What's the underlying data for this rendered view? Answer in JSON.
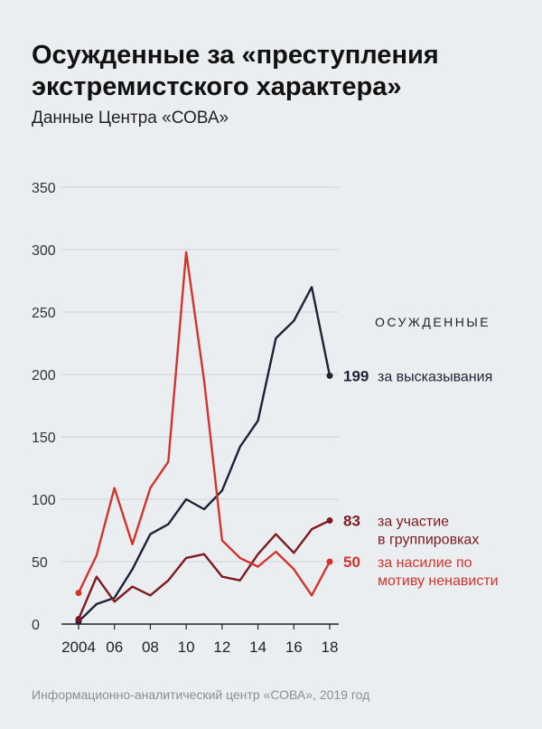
{
  "header": {
    "title": "Осужденные за «преступления экстремистского характера»",
    "subtitle": "Данные Центра «СОВА»"
  },
  "footer": {
    "source": "Информационно-аналитический центр «СОВА», 2019 год"
  },
  "colors": {
    "speech": "#1f2235",
    "groups": "#7d1a1f",
    "violence": "#d0342c"
  },
  "chart_data": {
    "type": "line",
    "title": "Осужденные за «преступления экстремистского характера»",
    "subtitle": "Данные Центра «СОВА»",
    "xlabel": "",
    "ylabel": "",
    "x": [
      2004,
      2005,
      2006,
      2007,
      2008,
      2009,
      2010,
      2011,
      2012,
      2013,
      2014,
      2015,
      2016,
      2017,
      2018
    ],
    "x_tick_values": [
      2004,
      2006,
      2008,
      2010,
      2012,
      2014,
      2016,
      2018
    ],
    "x_tick_labels": [
      "2004",
      "06",
      "08",
      "10",
      "12",
      "14",
      "16",
      "18"
    ],
    "y_ticks": [
      0,
      50,
      100,
      150,
      200,
      250,
      300,
      350
    ],
    "ylim": [
      0,
      350
    ],
    "grid": true,
    "legend_header": "ОСУЖДЕННЫЕ",
    "series": [
      {
        "key": "speech",
        "name": "за высказывания",
        "name_lines": [
          "за высказывания"
        ],
        "end_label": "199",
        "values": [
          2,
          16,
          21,
          44,
          72,
          80,
          100,
          92,
          107,
          142,
          163,
          229,
          243,
          270,
          199
        ]
      },
      {
        "key": "groups",
        "name": "за участие в группировках",
        "name_lines": [
          "за участие",
          "в группировках"
        ],
        "end_label": "83",
        "values": [
          4,
          38,
          18,
          30,
          23,
          35,
          53,
          56,
          38,
          35,
          56,
          72,
          57,
          76,
          83
        ]
      },
      {
        "key": "violence",
        "name": "за насилие по мотиву ненависти",
        "name_lines": [
          "за насилие по",
          "мотиву ненависти"
        ],
        "end_label": "50",
        "values": [
          25,
          55,
          109,
          64,
          109,
          130,
          298,
          195,
          67,
          53,
          46,
          58,
          44,
          23,
          50
        ]
      }
    ]
  }
}
